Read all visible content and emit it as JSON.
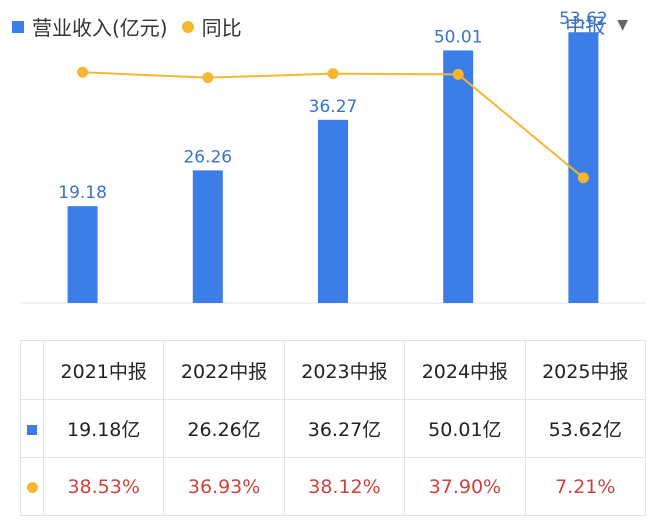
{
  "legend": {
    "revenue": "营业收入(亿元)",
    "yoy": "同比"
  },
  "period_selector": {
    "label": "中报",
    "arrow": "▼"
  },
  "colors": {
    "bar": "#3b7ee8",
    "line": "#f5b731",
    "pct_text": "#c9443e"
  },
  "chart_data": {
    "type": "bar",
    "categories": [
      "2021中报",
      "2022中报",
      "2023中报",
      "2024中报",
      "2025中报"
    ],
    "series": [
      {
        "name": "营业收入(亿元)",
        "type": "bar",
        "values": [
          19.18,
          26.26,
          36.27,
          50.01,
          53.62
        ]
      },
      {
        "name": "同比",
        "type": "line",
        "values": [
          38.53,
          36.93,
          38.12,
          37.9,
          7.21
        ]
      }
    ],
    "bar_labels": [
      "19.18",
      "26.26",
      "36.27",
      "50.01",
      "53.62"
    ],
    "ylim": [
      0,
      60
    ],
    "yoy_ylim": [
      -30,
      60
    ]
  },
  "table": {
    "headers": [
      "2021中报",
      "2022中报",
      "2023中报",
      "2024中报",
      "2025中报"
    ],
    "revenue_row": [
      "19.18亿",
      "26.26亿",
      "36.27亿",
      "50.01亿",
      "53.62亿"
    ],
    "yoy_row": [
      "38.53%",
      "36.93%",
      "38.12%",
      "37.90%",
      "7.21%"
    ]
  }
}
